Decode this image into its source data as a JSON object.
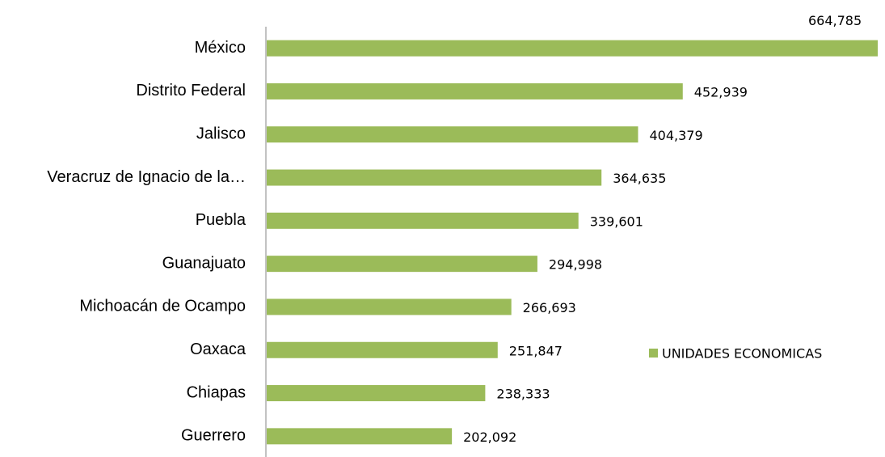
{
  "chart_data": {
    "type": "barh",
    "categories": [
      "México",
      "Distrito Federal",
      "Jalisco",
      "Veracruz de Ignacio de la…",
      "Puebla",
      "Guanajuato",
      "Michoacán de Ocampo",
      "Oaxaca",
      "Chiapas",
      "Guerrero"
    ],
    "series": [
      {
        "name": "UNIDADES ECONOMICAS",
        "color": "#9bbb59",
        "values": [
          664785,
          452939,
          404379,
          364635,
          339601,
          294998,
          266693,
          251847,
          238333,
          202092
        ],
        "value_labels": [
          "664,785",
          "452,939",
          "404,379",
          "364,635",
          "339,601",
          "294,998",
          "266,693",
          "251,847",
          "238,333",
          "202,092"
        ]
      }
    ],
    "legend": "right"
  }
}
